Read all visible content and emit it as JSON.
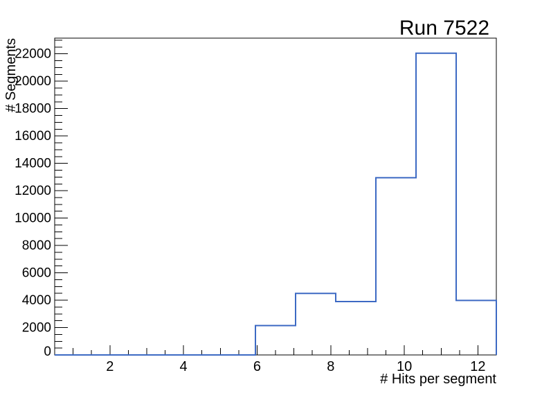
{
  "chart_data": {
    "type": "bar",
    "subtype": "step-histogram",
    "title": "Run 7522",
    "xlabel": "# Hits per segment",
    "ylabel": "# Segments",
    "x_range": [
      0.5,
      12.5
    ],
    "y_range": [
      0,
      23152
    ],
    "bin_edges": [
      0.5,
      1.591,
      2.682,
      3.773,
      4.864,
      5.955,
      7.045,
      8.136,
      9.227,
      10.318,
      11.409,
      12.5
    ],
    "counts": [
      0,
      0,
      0,
      0,
      0,
      2150,
      4500,
      3900,
      12950,
      22050,
      3980
    ],
    "x_major_ticks": [
      2,
      4,
      6,
      8,
      10,
      12
    ],
    "x_mid_ticks": [
      1,
      3,
      5,
      7,
      9,
      11
    ],
    "x_minor_tick_step": 0.5,
    "y_major_ticks": [
      0,
      2000,
      4000,
      6000,
      8000,
      10000,
      12000,
      14000,
      16000,
      18000,
      20000,
      22000
    ],
    "y_minor_tick_step": 500,
    "grid": false,
    "legend": null,
    "line_color": "#3c69c3",
    "frame_color": "#000000",
    "text_color": "#000000",
    "background": "#ffffff"
  }
}
